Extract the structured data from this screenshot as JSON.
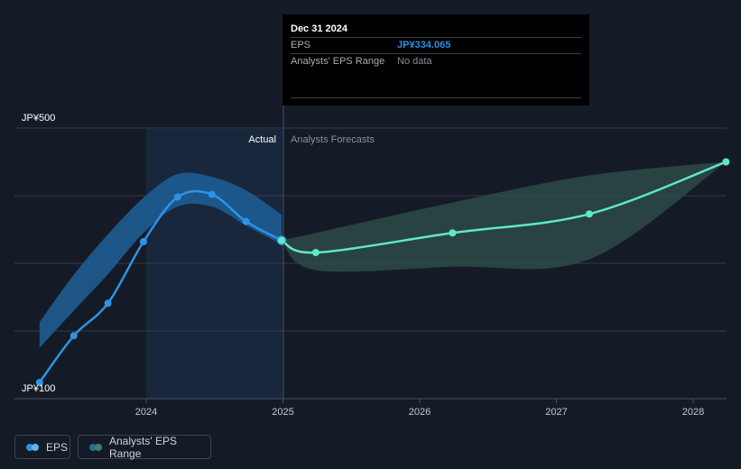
{
  "tooltip": {
    "date": "Dec 31 2024",
    "rows": [
      {
        "label": "EPS",
        "value": "JP¥334.065"
      },
      {
        "label": "Analysts' EPS Range",
        "value": "No data"
      }
    ]
  },
  "legend": [
    {
      "label": "EPS",
      "colors": [
        "#2e93e6",
        "#5fb4f2"
      ]
    },
    {
      "label": "Analysts' EPS Range",
      "colors": [
        "#2a6f8e",
        "#3f7f7a"
      ]
    }
  ],
  "colors": {
    "background": "#151b26",
    "actual_region": "#1a2c44",
    "actual_line": "#2e93e6",
    "actual_band": "#1f5f98",
    "forecast_line": "#5ee8c9",
    "forecast_band": "#2d4d4a",
    "grid": "#343b47"
  },
  "chart_data": {
    "type": "line",
    "title": "",
    "xlabel": "",
    "ylabel": "",
    "ylim": [
      100,
      500
    ],
    "y_tick_labels": [
      "JP¥500",
      "JP¥100"
    ],
    "x_ticks": [
      "2024",
      "2025",
      "2026",
      "2027",
      "2028"
    ],
    "region_labels": {
      "actual": "Actual",
      "forecast": "Analysts Forecasts"
    },
    "series": [
      {
        "name": "EPS",
        "kind": "actual",
        "x": [
          2023.22,
          2023.47,
          2023.72,
          2023.98,
          2024.23,
          2024.48,
          2024.73,
          2024.99
        ],
        "y": [
          124,
          193,
          241,
          332,
          398,
          402,
          362,
          334
        ]
      },
      {
        "name": "EPS",
        "kind": "forecast",
        "x": [
          2024.99,
          2025.24,
          2026.24,
          2027.24,
          2028.24
        ],
        "y": [
          334,
          316,
          345,
          373,
          450
        ]
      }
    ],
    "bands": [
      {
        "name": "Analysts' EPS Range",
        "kind": "actual",
        "x": [
          2023.22,
          2023.47,
          2023.72,
          2023.98,
          2024.23,
          2024.48,
          2024.73,
          2024.99
        ],
        "upper": [
          213,
          283,
          343,
          397,
          432,
          428,
          408,
          372
        ],
        "lower": [
          175,
          230,
          284,
          345,
          384,
          384,
          356,
          328
        ]
      },
      {
        "name": "Analysts' EPS Range",
        "kind": "forecast",
        "x": [
          2024.99,
          2025.24,
          2026.24,
          2027.24,
          2028.24
        ],
        "upper": [
          334,
          345,
          390,
          430,
          450
        ],
        "lower": [
          334,
          290,
          295,
          306,
          450
        ]
      }
    ]
  }
}
